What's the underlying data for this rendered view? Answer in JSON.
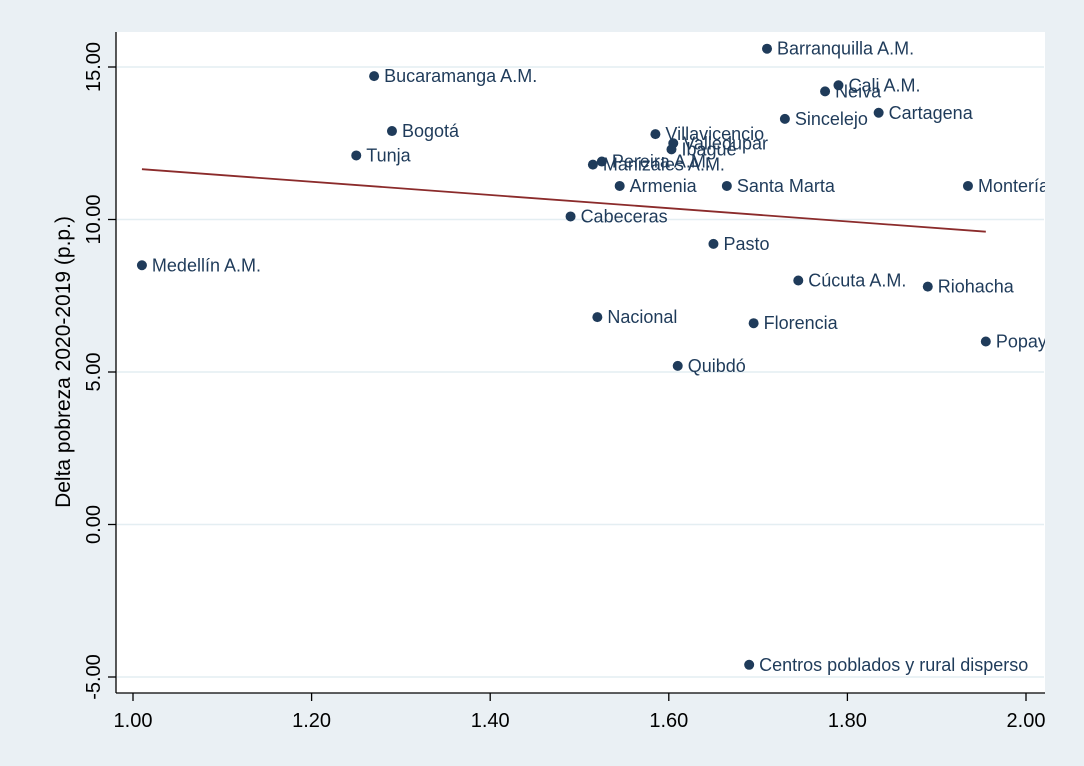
{
  "chart_data": {
    "type": "scatter",
    "title": "",
    "xlabel": "",
    "ylabel": "Delta pobreza 2020-2019 (p.p.)",
    "xlim": [
      1.0,
      2.0
    ],
    "ylim": [
      -5.0,
      15.0
    ],
    "x_ticks": [
      "1.00",
      "1.20",
      "1.40",
      "1.60",
      "1.80",
      "2.00"
    ],
    "y_ticks": [
      "-5.00",
      "0.00",
      "5.00",
      "10.00",
      "15.00"
    ],
    "grid": "horizontal",
    "points": [
      {
        "label": "Barranquilla A.M.",
        "x": 1.71,
        "y": 15.6
      },
      {
        "label": "Bucaramanga A.M.",
        "x": 1.27,
        "y": 14.7
      },
      {
        "label": "Cali A.M.",
        "x": 1.79,
        "y": 14.4
      },
      {
        "label": "Neiva",
        "x": 1.775,
        "y": 14.2
      },
      {
        "label": "Cartagena",
        "x": 1.835,
        "y": 13.5
      },
      {
        "label": "Sincelejo",
        "x": 1.73,
        "y": 13.3
      },
      {
        "label": "Bogotá",
        "x": 1.29,
        "y": 12.9
      },
      {
        "label": "Villavicencio",
        "x": 1.585,
        "y": 12.8
      },
      {
        "label": "Valledupar",
        "x": 1.605,
        "y": 12.5
      },
      {
        "label": "Ibagué",
        "x": 1.603,
        "y": 12.3
      },
      {
        "label": "Tunja",
        "x": 1.25,
        "y": 12.1
      },
      {
        "label": "Pereira A.M.",
        "x": 1.525,
        "y": 11.9
      },
      {
        "label": "Manizales A.M.",
        "x": 1.515,
        "y": 11.8
      },
      {
        "label": "Armenia",
        "x": 1.545,
        "y": 11.1
      },
      {
        "label": "Santa Marta",
        "x": 1.665,
        "y": 11.1
      },
      {
        "label": "Montería",
        "x": 1.935,
        "y": 11.1
      },
      {
        "label": "Cabeceras",
        "x": 1.49,
        "y": 10.1
      },
      {
        "label": "Pasto",
        "x": 1.65,
        "y": 9.2
      },
      {
        "label": "Medellín A.M.",
        "x": 1.01,
        "y": 8.5
      },
      {
        "label": "Cúcuta A.M.",
        "x": 1.745,
        "y": 8.0
      },
      {
        "label": "Riohacha",
        "x": 1.89,
        "y": 7.8
      },
      {
        "label": "Nacional",
        "x": 1.52,
        "y": 6.8
      },
      {
        "label": "Florencia",
        "x": 1.695,
        "y": 6.6
      },
      {
        "label": "Popayán",
        "x": 1.955,
        "y": 6.0
      },
      {
        "label": "Quibdó",
        "x": 1.61,
        "y": 5.2
      },
      {
        "label": "Centros poblados y rural disperso",
        "x": 1.69,
        "y": -4.6
      }
    ],
    "fit_line": {
      "x": [
        1.01,
        1.955
      ],
      "y": [
        11.65,
        9.6
      ],
      "color": "#8b2b2b"
    },
    "point_color": "#1f3b5a"
  }
}
